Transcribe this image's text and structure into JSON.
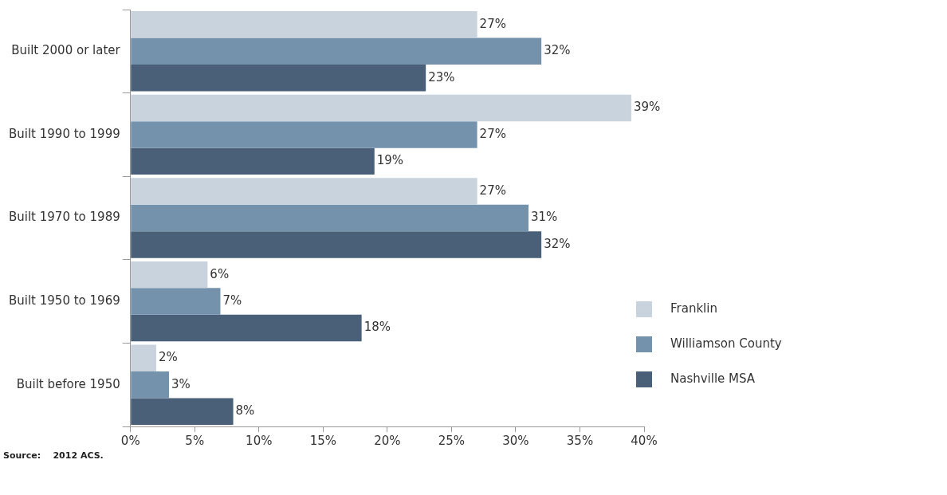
{
  "chart_data": {
    "type": "bar",
    "orientation": "horizontal",
    "categories": [
      "Built 2000 or later",
      "Built 1990 to 1999",
      "Built 1970 to 1989",
      "Built 1950 to 1969",
      "Built before 1950"
    ],
    "series": [
      {
        "name": "Franklin",
        "color": "#c8d3de",
        "values": [
          27,
          39,
          27,
          6,
          2
        ],
        "value_labels": [
          "27%",
          "39%",
          "27%",
          "6%",
          "2%"
        ]
      },
      {
        "name": "Williamson County",
        "color": "#7592ad",
        "values": [
          32,
          27,
          31,
          7,
          3
        ],
        "value_labels": [
          "32%",
          "27%",
          "31%",
          "7%",
          "3%"
        ]
      },
      {
        "name": "Nashville MSA",
        "color": "#4a6078",
        "values": [
          23,
          19,
          32,
          18,
          8
        ],
        "value_labels": [
          "23%",
          "19%",
          "32%",
          "18%",
          "8%"
        ]
      }
    ],
    "xlim": [
      0,
      40
    ],
    "xticks": [
      {
        "value": 0,
        "label": "0%"
      },
      {
        "value": 5,
        "label": "5%"
      },
      {
        "value": 10,
        "label": "10%"
      },
      {
        "value": 15,
        "label": "15%"
      },
      {
        "value": 20,
        "label": "20%"
      },
      {
        "value": 25,
        "label": "25%"
      },
      {
        "value": 30,
        "label": "30%"
      },
      {
        "value": 35,
        "label": "35%"
      },
      {
        "value": 40,
        "label": "40%"
      }
    ],
    "grid": false,
    "legend": "bottom right",
    "annotations": [
      "Source:    2012 ACS."
    ]
  }
}
